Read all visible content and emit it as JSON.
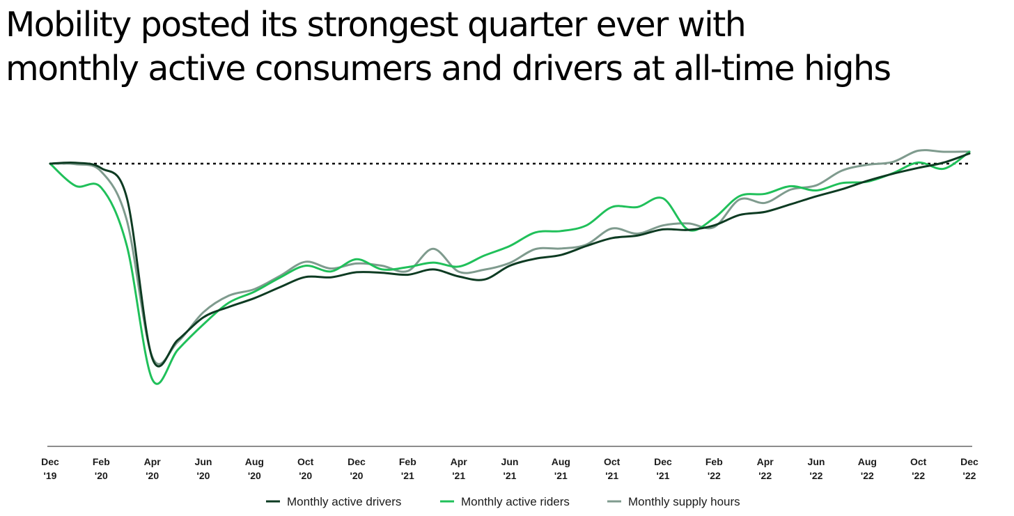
{
  "title": {
    "line1": "Mobility posted its strongest quarter ever with",
    "line2": "monthly active consumers and drivers at all-time highs"
  },
  "chart_data": {
    "type": "line",
    "title": "Mobility posted its strongest quarter ever with monthly active consumers and drivers at all-time highs",
    "xlabel": "",
    "ylabel": "",
    "yaxis_shown": false,
    "y_units": "percent of December 2019 level (estimated; no y-axis printed)",
    "ylim": [
      0,
      110
    ],
    "baseline": {
      "value": 100,
      "style": "dotted",
      "color": "#000000"
    },
    "grid": false,
    "legend_position": "bottom",
    "x": [
      "Dec '19",
      "Jan '20",
      "Feb '20",
      "Mar '20",
      "Apr '20",
      "May '20",
      "Jun '20",
      "Jul '20",
      "Aug '20",
      "Sep '20",
      "Oct '20",
      "Nov '20",
      "Dec '20",
      "Jan '21",
      "Feb '21",
      "Mar '21",
      "Apr '21",
      "May '21",
      "Jun '21",
      "Jul '21",
      "Aug '21",
      "Sep '21",
      "Oct '21",
      "Nov '21",
      "Dec '21",
      "Jan '22",
      "Feb '22",
      "Mar '22",
      "Apr '22",
      "May '22",
      "Jun '22",
      "Jul '22",
      "Aug '22",
      "Sep '22",
      "Oct '22",
      "Nov '22",
      "Dec '22"
    ],
    "tick_labels": [
      {
        "month": "Dec",
        "year": "'19",
        "index": 0
      },
      {
        "month": "Feb",
        "year": "'20",
        "index": 2
      },
      {
        "month": "Apr",
        "year": "'20",
        "index": 4
      },
      {
        "month": "Jun",
        "year": "'20",
        "index": 6
      },
      {
        "month": "Aug",
        "year": "'20",
        "index": 8
      },
      {
        "month": "Oct",
        "year": "'20",
        "index": 10
      },
      {
        "month": "Dec",
        "year": "'20",
        "index": 12
      },
      {
        "month": "Feb",
        "year": "'21",
        "index": 14
      },
      {
        "month": "Apr",
        "year": "'21",
        "index": 16
      },
      {
        "month": "Jun",
        "year": "'21",
        "index": 18
      },
      {
        "month": "Aug",
        "year": "'21",
        "index": 20
      },
      {
        "month": "Oct",
        "year": "'21",
        "index": 22
      },
      {
        "month": "Dec",
        "year": "'21",
        "index": 24
      },
      {
        "month": "Feb",
        "year": "'22",
        "index": 26
      },
      {
        "month": "Apr",
        "year": "'22",
        "index": 28
      },
      {
        "month": "Jun",
        "year": "'22",
        "index": 30
      },
      {
        "month": "Aug",
        "year": "'22",
        "index": 32
      },
      {
        "month": "Oct",
        "year": "'22",
        "index": 34
      },
      {
        "month": "Dec",
        "year": "'22",
        "index": 36
      }
    ],
    "series": [
      {
        "name": "Monthly active drivers",
        "color": "#0d3b22",
        "values": [
          100,
          100.3,
          98.4,
          88,
          31,
          37.5,
          45.5,
          49.2,
          52.3,
          56.2,
          59.8,
          59.7,
          61.5,
          61.3,
          60.6,
          62.5,
          60,
          58.9,
          63.8,
          66.3,
          67.6,
          70.8,
          73.6,
          74.5,
          76.7,
          76.5,
          78.1,
          81.8,
          82.9,
          85.6,
          88.4,
          90.9,
          93.9,
          96.4,
          98.5,
          100.4,
          103.6
        ]
      },
      {
        "name": "Monthly active riders",
        "color": "#20c05a",
        "values": [
          100,
          92.1,
          91.5,
          71,
          23.5,
          34,
          43,
          50.7,
          54.6,
          59.6,
          63.8,
          61.8,
          66.1,
          62.5,
          63.3,
          64.9,
          63.5,
          67.4,
          70.8,
          75.6,
          76.1,
          78.1,
          84.6,
          84.6,
          87.7,
          76.5,
          80.7,
          88.5,
          89.3,
          92,
          90.5,
          93.1,
          93.6,
          96.6,
          100.4,
          98.2,
          104.2
        ]
      },
      {
        "name": "Monthly supply hours",
        "color": "#7f9b8e",
        "values": [
          100,
          99.8,
          97.2,
          80,
          31.5,
          36.8,
          47.3,
          53.2,
          55.5,
          60.2,
          65.2,
          62.8,
          64.6,
          63.8,
          61.9,
          69.8,
          61.7,
          62.4,
          64.8,
          69.7,
          69.9,
          71.3,
          77,
          75.2,
          78.1,
          78.8,
          77.5,
          87.3,
          86.1,
          90.8,
          92.3,
          97.5,
          99.6,
          100.6,
          104.6,
          104.2,
          104.3
        ]
      }
    ]
  }
}
